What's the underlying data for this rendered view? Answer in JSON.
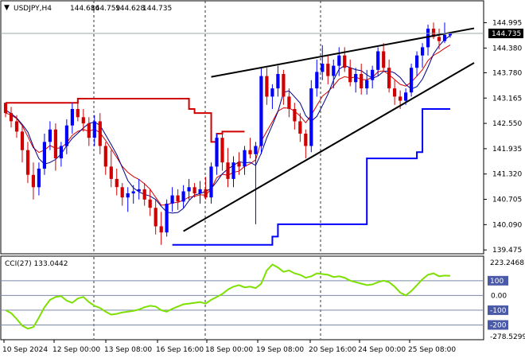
{
  "chart_data": [
    {
      "type": "candlestick",
      "header": {
        "symbol_timeframe": "USDJPY,H4",
        "open": "144.686",
        "high": "144.759",
        "low": "144.628",
        "close": "144.735"
      },
      "current_price_label": "144.735",
      "y_ticks": [
        "144.995",
        "144.380",
        "143.780",
        "143.165",
        "142.550",
        "141.935",
        "141.320",
        "140.705",
        "140.090",
        "139.475"
      ],
      "ylim": [
        139.44,
        145.18
      ],
      "x_ticks": [
        "10 Sep 2024",
        "12 Sep 00:00",
        "13 Sep 08:00",
        "16 Sep 16:00",
        "18 Sep 00:00",
        "19 Sep 08:00",
        "20 Sep 16:00",
        "24 Sep 00:00",
        "25 Sep 08:00"
      ],
      "candles": [
        [
          143.05,
          143.05,
          142.7,
          142.8
        ],
        [
          142.8,
          142.95,
          142.45,
          142.6
        ],
        [
          142.6,
          142.75,
          142.2,
          142.35
        ],
        [
          142.35,
          142.5,
          141.6,
          141.9
        ],
        [
          141.9,
          142.1,
          141.1,
          141.3
        ],
        [
          141.3,
          141.6,
          140.7,
          141.0
        ],
        [
          141.0,
          141.6,
          140.8,
          141.45
        ],
        [
          141.45,
          142.3,
          141.3,
          142.1
        ],
        [
          142.1,
          142.6,
          141.9,
          142.4
        ],
        [
          142.4,
          142.55,
          141.4,
          141.7
        ],
        [
          141.7,
          142.1,
          141.5,
          142.0
        ],
        [
          142.0,
          142.65,
          141.8,
          142.5
        ],
        [
          142.5,
          143.05,
          142.3,
          142.9
        ],
        [
          142.9,
          143.15,
          142.6,
          142.7
        ],
        [
          142.7,
          142.9,
          142.35,
          142.55
        ],
        [
          142.55,
          142.7,
          142.0,
          142.2
        ],
        [
          142.2,
          142.75,
          142.0,
          142.6
        ],
        [
          142.6,
          142.8,
          141.8,
          142.0
        ],
        [
          142.0,
          142.1,
          141.3,
          141.5
        ],
        [
          141.5,
          141.9,
          141.0,
          141.2
        ],
        [
          141.2,
          141.45,
          140.8,
          141.0
        ],
        [
          141.0,
          141.1,
          140.55,
          140.75
        ],
        [
          140.75,
          141.0,
          140.4,
          140.85
        ],
        [
          140.85,
          141.05,
          140.6,
          140.9
        ],
        [
          140.9,
          141.2,
          140.7,
          140.95
        ],
        [
          140.95,
          141.1,
          140.55,
          140.7
        ],
        [
          140.7,
          140.95,
          140.3,
          140.5
        ],
        [
          140.5,
          140.7,
          139.85,
          140.05
        ],
        [
          140.05,
          140.4,
          139.6,
          139.9
        ],
        [
          139.9,
          140.7,
          139.8,
          140.6
        ],
        [
          140.6,
          141.0,
          140.4,
          140.8
        ],
        [
          140.8,
          140.95,
          140.45,
          140.65
        ],
        [
          140.65,
          141.05,
          140.5,
          140.9
        ],
        [
          140.9,
          141.2,
          140.7,
          141.0
        ],
        [
          141.0,
          141.1,
          140.75,
          140.85
        ],
        [
          140.85,
          141.15,
          140.6,
          140.95
        ],
        [
          140.95,
          141.25,
          140.7,
          140.75
        ],
        [
          140.75,
          141.6,
          140.6,
          141.5
        ],
        [
          141.5,
          142.3,
          141.3,
          142.2
        ],
        [
          142.2,
          142.35,
          141.4,
          141.6
        ],
        [
          141.6,
          141.95,
          141.0,
          141.2
        ],
        [
          141.2,
          141.75,
          141.0,
          141.6
        ],
        [
          141.6,
          141.85,
          141.3,
          141.5
        ],
        [
          141.5,
          142.0,
          141.3,
          141.9
        ],
        [
          141.9,
          142.2,
          141.7,
          141.8
        ],
        [
          141.8,
          142.1,
          140.1,
          142.0
        ],
        [
          142.0,
          143.9,
          141.8,
          143.7
        ],
        [
          143.7,
          143.9,
          143.0,
          143.2
        ],
        [
          143.2,
          143.5,
          142.9,
          143.4
        ],
        [
          143.4,
          143.95,
          143.2,
          143.75
        ],
        [
          143.75,
          143.85,
          143.0,
          143.2
        ],
        [
          143.2,
          143.4,
          142.7,
          142.9
        ],
        [
          142.9,
          143.05,
          142.4,
          142.6
        ],
        [
          142.6,
          142.8,
          142.1,
          142.3
        ],
        [
          142.3,
          142.4,
          141.7,
          142.0
        ],
        [
          142.0,
          143.6,
          141.85,
          143.4
        ],
        [
          143.4,
          144.1,
          143.2,
          143.8
        ],
        [
          143.8,
          144.45,
          143.6,
          144.0
        ],
        [
          144.0,
          144.2,
          143.5,
          143.7
        ],
        [
          143.7,
          144.1,
          143.4,
          143.95
        ],
        [
          143.95,
          144.4,
          143.7,
          144.2
        ],
        [
          144.2,
          144.4,
          143.8,
          143.9
        ],
        [
          143.9,
          144.1,
          143.45,
          143.55
        ],
        [
          143.55,
          143.9,
          143.3,
          143.75
        ],
        [
          143.75,
          144.0,
          143.25,
          143.4
        ],
        [
          143.4,
          143.85,
          143.25,
          143.6
        ],
        [
          143.6,
          143.95,
          143.4,
          143.85
        ],
        [
          143.85,
          144.4,
          143.7,
          144.3
        ],
        [
          144.3,
          144.5,
          143.8,
          143.9
        ],
        [
          143.9,
          144.1,
          143.3,
          143.4
        ],
        [
          143.4,
          143.6,
          143.0,
          143.2
        ],
        [
          143.2,
          143.35,
          142.9,
          143.1
        ],
        [
          143.1,
          143.4,
          143.0,
          143.3
        ],
        [
          143.3,
          144.0,
          143.2,
          143.9
        ],
        [
          143.9,
          144.3,
          143.7,
          144.2
        ],
        [
          144.2,
          144.5,
          143.9,
          144.4
        ],
        [
          144.4,
          144.95,
          144.2,
          144.85
        ],
        [
          144.85,
          145.0,
          144.6,
          144.65
        ],
        [
          144.65,
          144.85,
          144.35,
          144.55
        ],
        [
          144.55,
          145.0,
          144.5,
          144.7
        ],
        [
          144.686,
          144.759,
          144.628,
          144.735
        ]
      ],
      "moving_average_blue_label": "",
      "moving_average_red_label": "",
      "trendlines": "rising wedge (two converging black lines)",
      "colors": {
        "bull": "#0000ff",
        "bear": "#d10000",
        "ma_blue": "#00008b",
        "ma_red": "#d10000",
        "channel_red": "#d10000",
        "channel_blue": "#0000ff",
        "trendline": "#000000",
        "cci": "#7de000"
      }
    },
    {
      "type": "line",
      "indicator_label": "CCI(27) 133.0442",
      "y_top_label": "223.2468",
      "y_bottom_label": "-278.5299",
      "levels": [
        "100",
        "0.00",
        "-100",
        "-200"
      ],
      "ylim": [
        -278.5299,
        223.2468
      ],
      "values": [
        -100,
        -120,
        -160,
        -205,
        -225,
        -215,
        -150,
        -80,
        -30,
        -10,
        -5,
        -35,
        -50,
        -20,
        -10,
        -45,
        -70,
        -85,
        -110,
        -130,
        -125,
        -115,
        -110,
        -105,
        -95,
        -80,
        -70,
        -75,
        -100,
        -110,
        -90,
        -75,
        -60,
        -55,
        -50,
        -45,
        -55,
        -30,
        -10,
        10,
        40,
        60,
        70,
        55,
        60,
        50,
        80,
        170,
        210,
        190,
        160,
        170,
        150,
        140,
        120,
        130,
        150,
        145,
        140,
        125,
        130,
        120,
        100,
        90,
        80,
        70,
        75,
        90,
        100,
        90,
        60,
        20,
        0,
        30,
        70,
        110,
        140,
        150,
        130,
        135,
        133
      ]
    }
  ]
}
